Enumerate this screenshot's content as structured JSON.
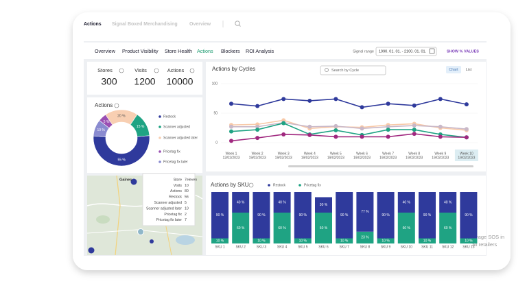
{
  "tabs": [
    "Actions",
    "Signal Boxed Merchandising",
    "Overview"
  ],
  "nav": [
    "Overview",
    "Product Visibility",
    "Store Health",
    "Actions",
    "Blockers",
    "ROI Analysis"
  ],
  "signal_range": {
    "label": "Signal range",
    "value": "1990. 01. 01. - 2100. 01. 01."
  },
  "show_percent": "SHOW % VALUES",
  "kpis": [
    {
      "label": "Stores",
      "value": 300
    },
    {
      "label": "Visits",
      "value": 1200
    },
    {
      "label": "Actions",
      "value": 10000
    }
  ],
  "map": {
    "place": "Gaines",
    "tooltip": [
      {
        "label": "Store",
        "value": "7eleven"
      },
      {
        "label": "Visits",
        "value": 10
      },
      {
        "label": "Actions",
        "value": 80
      },
      {
        "label": "Restock",
        "value": 56
      },
      {
        "label": "Scanner adjusted",
        "value": 5
      },
      {
        "label": "Scanner adjusted later",
        "value": 10
      },
      {
        "label": "Pricetag fix",
        "value": 2
      },
      {
        "label": "Pricetag fix later",
        "value": 7
      }
    ]
  },
  "overlay": [
    "erage SOS in",
    "all retailers"
  ],
  "chart_data": [
    {
      "type": "pie",
      "title": "Actions",
      "categories": [
        "Restock",
        "Scanner adjusted",
        "Scanner adjusted later",
        "Pricetag fix",
        "Pricetag fix later"
      ],
      "values": [
        55,
        15,
        20,
        5,
        10
      ],
      "value_labels": [
        "55 %",
        "15 %",
        "20 %",
        "5 %",
        "10 %"
      ],
      "colors": [
        "#2f3a9c",
        "#1fa383",
        "#f8cfb2",
        "#9a4fb3",
        "#8a8bd0"
      ]
    },
    {
      "type": "line",
      "title": "Actions by Cycles",
      "search": "Search by Cycle",
      "views": [
        "Chart",
        "List"
      ],
      "categories": [
        "Week 1",
        "Week 2",
        "Week 3",
        "Week 4",
        "Week 5",
        "Week 6",
        "Week 7",
        "Week 8",
        "Week 9",
        "Week 10"
      ],
      "category_dates": [
        "12/02/2023",
        "19/02/2023",
        "19/02/2023",
        "19/02/2023",
        "19/02/2023",
        "19/02/2023",
        "19/02/2023",
        "19/02/2023",
        "19/02/2023",
        "19/02/2023"
      ],
      "ylim": [
        0,
        100
      ],
      "yticks": [
        0,
        50,
        100
      ],
      "series": [
        {
          "color": "#2f3a9c",
          "values": [
            66,
            62,
            74,
            71,
            74,
            60,
            66,
            63,
            74,
            65
          ]
        },
        {
          "color": "#f8c9a8",
          "values": [
            30,
            31,
            38,
            24,
            27,
            26,
            30,
            32,
            25,
            21
          ]
        },
        {
          "color": "#c9b8c8",
          "values": [
            27,
            27,
            34,
            27,
            28,
            24,
            27,
            29,
            27,
            23
          ]
        },
        {
          "color": "#1fa383",
          "values": [
            19,
            22,
            33,
            14,
            21,
            13,
            22,
            22,
            14,
            9
          ]
        },
        {
          "color": "#a0287f",
          "values": [
            3,
            8,
            14,
            13,
            10,
            10,
            10,
            15,
            10,
            9
          ]
        }
      ]
    },
    {
      "type": "bar",
      "stacked": true,
      "title": "Actions by SKU",
      "categories": [
        "SKU 1",
        "SKU 2",
        "SKU 3",
        "SKU 4",
        "SKU 5",
        "SKU 6",
        "SKU 7",
        "SKU 8",
        "SKU 9",
        "SKU 10",
        "SKU 11",
        "SKU 12",
        "SKU 13"
      ],
      "ylim": [
        0,
        100
      ],
      "series": [
        {
          "name": "Restock",
          "color": "#2f3a9c",
          "values": [
            90,
            40,
            90,
            40,
            90,
            30,
            90,
            77,
            90,
            40,
            90,
            40,
            90
          ],
          "value_labels": [
            "90 %",
            "40 %",
            "90 %",
            "40 %",
            "90 %",
            "30 %",
            "90 %",
            "77 %",
            "90 %",
            "40 %",
            "90 %",
            "40 %",
            "90 %"
          ]
        },
        {
          "name": "Pricetag fix",
          "color": "#1fa383",
          "values": [
            10,
            60,
            10,
            60,
            10,
            60,
            10,
            23,
            10,
            60,
            10,
            60,
            10
          ],
          "value_labels": [
            "10 %",
            "60 %",
            "10 %",
            "60 %",
            "10 %",
            "60 %",
            "10 %",
            "23 %",
            "10 %",
            "60 %",
            "10 %",
            "60 %",
            "10 %"
          ]
        }
      ]
    }
  ]
}
